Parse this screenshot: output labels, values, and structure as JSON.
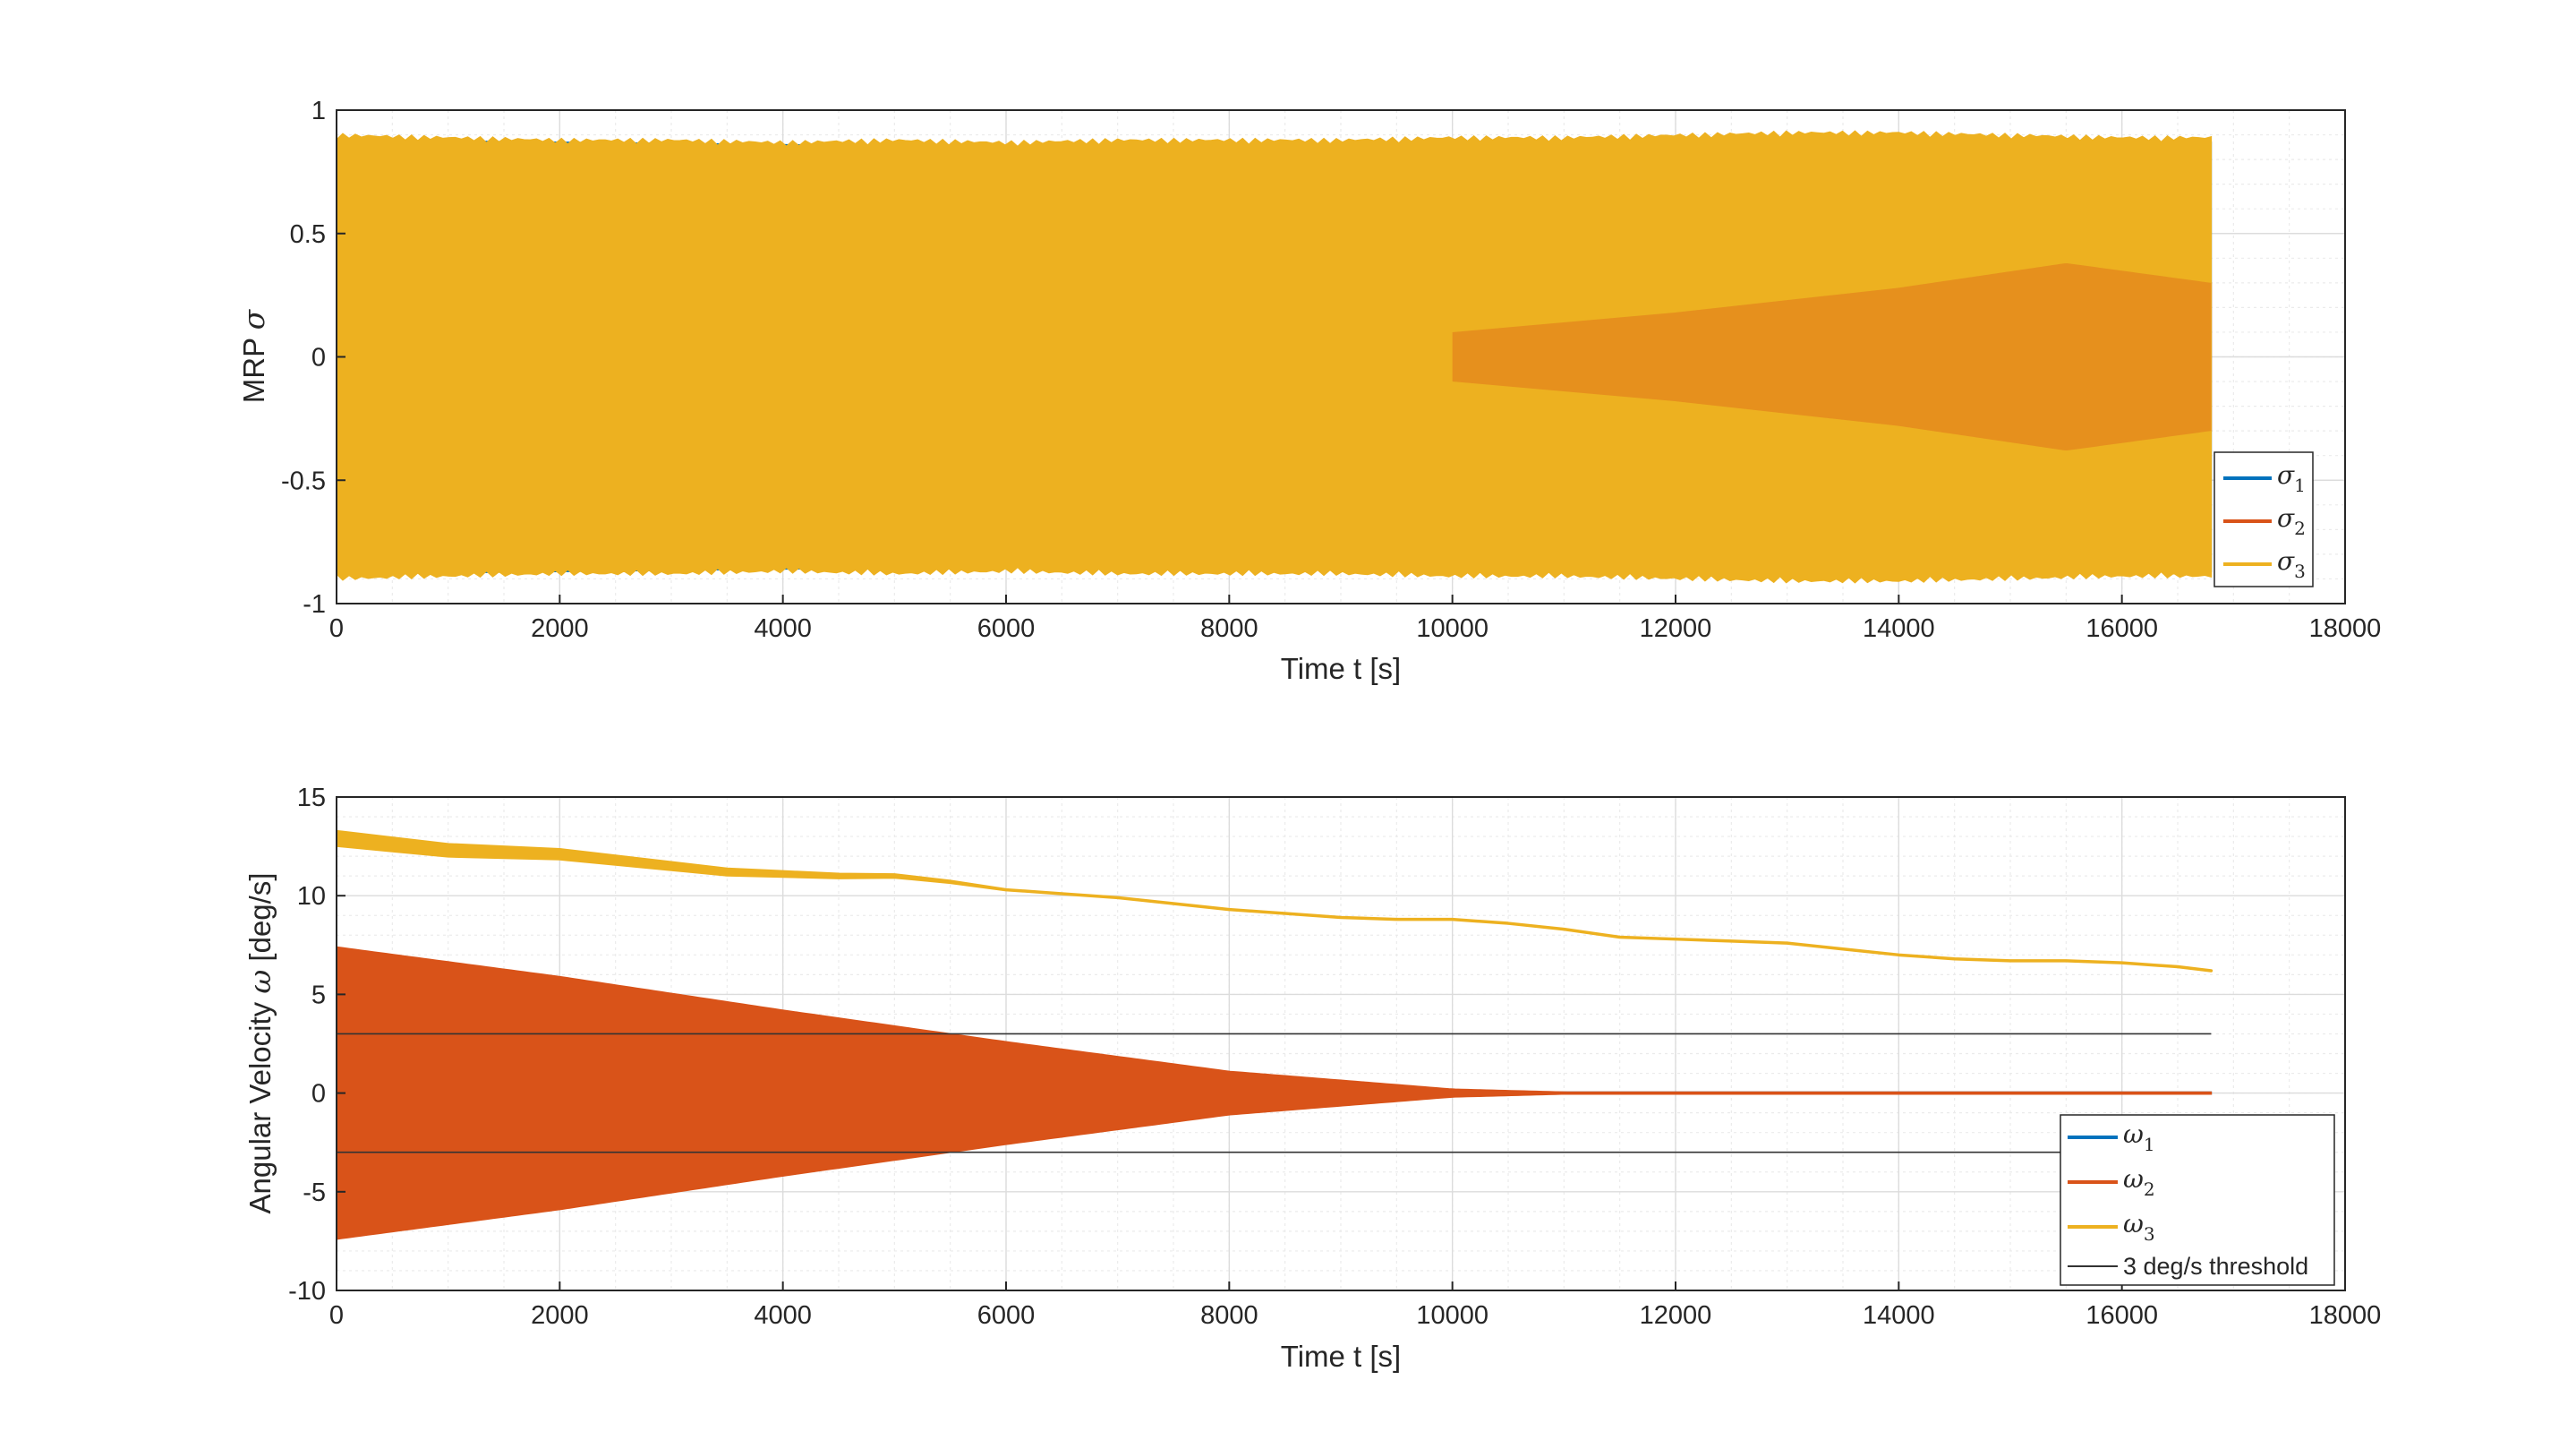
{
  "chart_data": [
    {
      "type": "line",
      "title": "",
      "xlabel": "Time t [s]",
      "ylabel_prefix": "MRP ",
      "ylabel_symbol": "σ",
      "xlim": [
        0,
        18000
      ],
      "ylim": [
        -1,
        1
      ],
      "xticks": [
        "0",
        "2000",
        "4000",
        "6000",
        "8000",
        "10000",
        "12000",
        "14000",
        "16000",
        "18000"
      ],
      "yticks": [
        "-1",
        "-0.5",
        "0",
        "0.5",
        "1"
      ],
      "grid": true,
      "minor_grid": true,
      "legend_position": "bottom-right",
      "series": [
        {
          "name": "σ",
          "sub": "1",
          "color": "#0072BD",
          "envelope_x": [
            0,
            2000,
            4000,
            6000,
            8000,
            10000,
            12000,
            14000,
            16000,
            16800
          ],
          "envelope_upper": [
            0.88,
            0.87,
            0.86,
            0.85,
            0.85,
            0.86,
            0.87,
            0.88,
            0.87,
            0.87
          ],
          "envelope_lower": [
            -0.88,
            -0.87,
            -0.86,
            -0.85,
            -0.85,
            -0.86,
            -0.87,
            -0.88,
            -0.87,
            -0.87
          ]
        },
        {
          "name": "σ",
          "sub": "2",
          "color": "#D95319",
          "envelope_x": [
            0,
            10000,
            12000,
            14000,
            15500,
            16800
          ],
          "envelope_upper": [
            0.1,
            0.1,
            0.18,
            0.28,
            0.38,
            0.3
          ],
          "envelope_lower": [
            -0.1,
            -0.1,
            -0.18,
            -0.28,
            -0.38,
            -0.3
          ]
        },
        {
          "name": "σ",
          "sub": "3",
          "color": "#EDB120",
          "envelope_x": [
            0,
            1000,
            2000,
            3000,
            4000,
            5000,
            6000,
            7000,
            8000,
            9000,
            10000,
            11000,
            12000,
            13000,
            14000,
            15000,
            16000,
            16800
          ],
          "envelope_upper": [
            0.88,
            0.87,
            0.86,
            0.86,
            0.85,
            0.86,
            0.85,
            0.86,
            0.86,
            0.86,
            0.87,
            0.87,
            0.88,
            0.89,
            0.89,
            0.88,
            0.87,
            0.87
          ],
          "envelope_lower": [
            -0.88,
            -0.87,
            -0.86,
            -0.86,
            -0.85,
            -0.86,
            -0.85,
            -0.86,
            -0.86,
            -0.86,
            -0.87,
            -0.87,
            -0.88,
            -0.89,
            -0.89,
            -0.88,
            -0.87,
            -0.87
          ]
        }
      ]
    },
    {
      "type": "line",
      "title": "",
      "xlabel": "Time t [s]",
      "ylabel_prefix": "Angular Velocity ",
      "ylabel_symbol": "ω",
      "ylabel_suffix": " [deg/s]",
      "xlim": [
        0,
        18000
      ],
      "ylim": [
        -10,
        15
      ],
      "xticks": [
        "0",
        "2000",
        "4000",
        "6000",
        "8000",
        "10000",
        "12000",
        "14000",
        "16000",
        "18000"
      ],
      "yticks": [
        "-10",
        "-5",
        "0",
        "5",
        "10",
        "15"
      ],
      "grid": true,
      "minor_grid": true,
      "legend_position": "bottom-right",
      "series": [
        {
          "name": "ω",
          "sub": "1",
          "color": "#0072BD",
          "envelope_x": [
            0,
            11000,
            16800
          ],
          "envelope_upper": [
            0.2,
            0.05,
            0.05
          ],
          "envelope_lower": [
            -0.2,
            -0.05,
            -0.05
          ]
        },
        {
          "name": "ω",
          "sub": "2",
          "color": "#D95319",
          "envelope_x": [
            0,
            2000,
            4000,
            6000,
            8000,
            10000,
            11000,
            12000,
            16800
          ],
          "envelope_upper": [
            7.4,
            5.9,
            4.2,
            2.6,
            1.1,
            0.2,
            0.05,
            0.05,
            0.05
          ],
          "envelope_lower": [
            -7.4,
            -5.9,
            -4.2,
            -2.6,
            -1.1,
            -0.2,
            -0.05,
            -0.05,
            -0.05
          ]
        },
        {
          "name": "ω",
          "sub": "3",
          "color": "#EDB120",
          "x": [
            0,
            500,
            1000,
            1500,
            2000,
            2500,
            3000,
            3500,
            4000,
            4500,
            5000,
            5500,
            6000,
            6500,
            7000,
            7500,
            8000,
            8500,
            9000,
            9500,
            10000,
            10500,
            11000,
            11500,
            12000,
            12500,
            13000,
            13500,
            14000,
            14500,
            15000,
            15500,
            16000,
            16500,
            16800
          ],
          "y": [
            12.9,
            12.6,
            12.3,
            12.2,
            12.1,
            11.8,
            11.5,
            11.2,
            11.1,
            11.0,
            11.0,
            10.7,
            10.3,
            10.1,
            9.9,
            9.6,
            9.3,
            9.1,
            8.9,
            8.8,
            8.8,
            8.6,
            8.3,
            7.9,
            7.8,
            7.7,
            7.6,
            7.3,
            7.0,
            6.8,
            6.7,
            6.7,
            6.6,
            6.4,
            6.2
          ],
          "band_width_start": 0.35
        },
        {
          "name": "3 deg/s threshold",
          "color": "#333333",
          "x": [
            0,
            16800
          ],
          "y_levels": [
            3,
            -3
          ]
        }
      ]
    }
  ]
}
